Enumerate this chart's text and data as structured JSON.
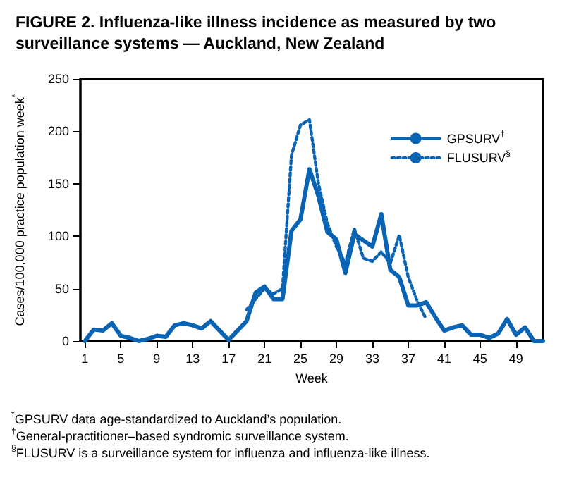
{
  "chart_data": {
    "type": "line",
    "title": "FIGURE 2. Influenza-like illness incidence as measured by two surveillance systems — Auckland, New Zealand",
    "xlabel": "Week",
    "ylabel": "Cases/100,000 practice population week$^{*}$",
    "xlim": [
      0.5,
      52
    ],
    "xticks": [
      1,
      5,
      9,
      13,
      17,
      21,
      25,
      29,
      33,
      37,
      41,
      45,
      49
    ],
    "ylim": [
      0,
      250
    ],
    "yticks": [
      0,
      50,
      100,
      150,
      200,
      250
    ],
    "grid": false,
    "legend": "top right",
    "marker": "none",
    "series": [
      {
        "name": "GPSURV$^{†}$",
        "color": "#0a64b4",
        "line_style": "solid",
        "x": [
          1,
          2,
          3,
          4,
          5,
          6,
          7,
          8,
          9,
          10,
          11,
          12,
          13,
          14,
          15,
          16,
          17,
          18,
          19,
          20,
          21,
          22,
          23,
          24,
          25,
          26,
          27,
          28,
          29,
          30,
          31,
          32,
          33,
          34,
          35,
          36,
          37,
          38,
          39,
          40,
          41,
          42,
          43,
          44,
          45,
          46,
          47,
          48,
          49,
          50,
          51,
          52
        ],
        "values": [
          0,
          11,
          10,
          17,
          5,
          3,
          0,
          2,
          5,
          4,
          15,
          17,
          15,
          12,
          19,
          10,
          1,
          10,
          19,
          46,
          52,
          40,
          40,
          105,
          116,
          164,
          138,
          104,
          97,
          65,
          102,
          96,
          90,
          121,
          68,
          61,
          34,
          34,
          37,
          23,
          10,
          13,
          15,
          6,
          6,
          3,
          7,
          21,
          6,
          13,
          0,
          0
        ]
      },
      {
        "name": "FLUSURV$^{§}$",
        "color": "#0a64b4",
        "line_style": "dotted",
        "x": [
          19,
          20,
          21,
          22,
          23,
          24,
          25,
          26,
          27,
          28,
          29,
          30,
          31,
          32,
          33,
          34,
          35,
          36,
          37,
          38,
          39
        ],
        "values": [
          30,
          40,
          50,
          45,
          50,
          177,
          206,
          211,
          150,
          112,
          90,
          74,
          107,
          79,
          76,
          85,
          74,
          101,
          61,
          38,
          21
        ]
      }
    ],
    "annotations": [
      "$^{*}$GPSURV data age-standardized to Auckland’s population.",
      "$^{†}$General-practitioner–based syndromic surveillance system.",
      "$^{§}$FLUSURV is a surveillance system for influenza and influenza-like illness."
    ]
  }
}
